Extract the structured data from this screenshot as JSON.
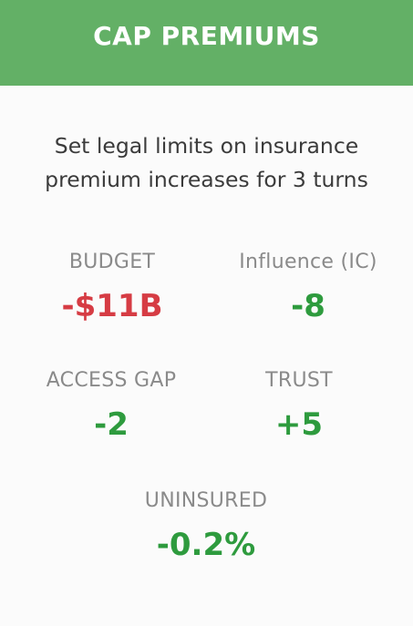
{
  "card": {
    "title": "CAP PREMIUMS",
    "description_line1": "Set legal limits on insurance",
    "description_line2": "premium increases for 3 turns",
    "colors": {
      "header": "#63b066",
      "negative": "#d63c44",
      "positive": "#2e9b3e"
    }
  },
  "stats": {
    "budget": {
      "label": "BUDGET",
      "value": "-$11B"
    },
    "influence": {
      "label": "Influence (IC)",
      "value": "-8"
    },
    "access_gap": {
      "label": "ACCESS GAP",
      "value": "-2"
    },
    "trust": {
      "label": "TRUST",
      "value": "+5"
    },
    "uninsured": {
      "label": "UNINSURED",
      "value": "-0.2%"
    }
  }
}
